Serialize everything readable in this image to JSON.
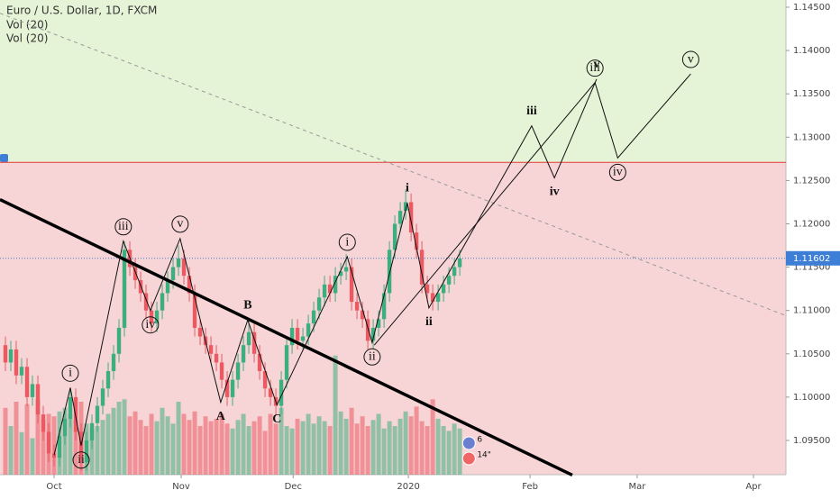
{
  "chart_data": {
    "type": "candlestick",
    "title": "Euro / U.S. Dollar, 1D, FXCM",
    "indicators": [
      "Vol (20)",
      "Vol (20)"
    ],
    "up_color": "#3fae7f",
    "down_color": "#ea5a62",
    "xlim": [
      -10,
      135.3
    ],
    "ylim": [
      1.09105,
      1.14583
    ],
    "vlim": [
      0,
      100
    ],
    "xticks": [
      {
        "value": 0,
        "label": "Oct"
      },
      {
        "value": 23.5,
        "label": "Nov"
      },
      {
        "value": 44.2,
        "label": "Dec"
      },
      {
        "value": 65.5,
        "label": "2020"
      },
      {
        "value": 88,
        "label": "Feb"
      },
      {
        "value": 107.8,
        "label": "Mar"
      },
      {
        "value": 129.3,
        "label": "Apr"
      }
    ],
    "yticks": [
      {
        "value": 1.145,
        "label": "1.14500"
      },
      {
        "value": 1.14,
        "label": "1.14000"
      },
      {
        "value": 1.135,
        "label": "1.13500"
      },
      {
        "value": 1.13,
        "label": "1.13000"
      },
      {
        "value": 1.125,
        "label": "1.12500"
      },
      {
        "value": 1.12,
        "label": "1.12000"
      },
      {
        "value": 1.115,
        "label": "1.11500"
      },
      {
        "value": 1.11,
        "label": "1.11000"
      },
      {
        "value": 1.105,
        "label": "1.10500"
      },
      {
        "value": 1.1,
        "label": "1.10000"
      },
      {
        "value": 1.095,
        "label": "1.09500"
      }
    ],
    "last_price": 1.11602,
    "zones": {
      "boundary": 1.1271,
      "above_color": "#e5f3d6",
      "below_color": "#f7d5d6"
    },
    "x": [
      -9,
      -8,
      -7,
      -6,
      -5,
      -4,
      -3,
      -2,
      -1,
      0,
      1,
      2,
      3,
      4,
      5,
      6,
      7,
      8,
      9,
      10,
      11,
      12,
      13,
      14,
      15,
      16,
      17,
      18,
      19,
      20,
      21,
      22,
      23,
      24,
      25,
      26,
      27,
      28,
      29,
      30,
      31,
      32,
      33,
      34,
      35,
      36,
      37,
      38,
      39,
      40,
      41,
      42,
      43,
      44,
      45,
      46,
      47,
      48,
      49,
      50,
      51,
      52,
      53,
      54,
      55,
      56,
      57,
      58,
      59,
      60,
      61,
      62,
      63,
      64,
      65,
      66,
      67,
      68,
      69,
      70,
      71,
      72,
      73,
      74,
      75
    ],
    "open": [
      1.106,
      1.104,
      1.1055,
      1.1025,
      1.1035,
      1.1,
      1.1015,
      1.098,
      1.096,
      1.0935,
      1.093,
      1.0955,
      1.0975,
      1.1,
      1.096,
      1.0925,
      1.095,
      1.097,
      1.099,
      1.101,
      1.103,
      1.105,
      1.108,
      1.117,
      1.115,
      1.1135,
      1.112,
      1.11,
      1.1085,
      1.11,
      1.112,
      1.1135,
      1.115,
      1.116,
      1.114,
      1.112,
      1.108,
      1.107,
      1.106,
      1.105,
      1.104,
      1.102,
      1.1,
      1.102,
      1.104,
      1.106,
      1.1075,
      1.105,
      1.103,
      1.101,
      1.1,
      1.099,
      1.102,
      1.106,
      1.108,
      1.1065,
      1.107,
      1.1085,
      1.11,
      1.1115,
      1.113,
      1.112,
      1.114,
      1.1145,
      1.115,
      1.111,
      1.11,
      1.109,
      1.1065,
      1.108,
      1.109,
      1.112,
      1.117,
      1.12,
      1.1215,
      1.1225,
      1.119,
      1.117,
      1.113,
      1.112,
      1.111,
      1.112,
      1.113,
      1.114,
      1.115
    ],
    "high": [
      1.107,
      1.1065,
      1.1065,
      1.1045,
      1.1045,
      1.1025,
      1.1025,
      1.099,
      1.097,
      1.0945,
      1.0965,
      1.0985,
      1.101,
      1.101,
      1.097,
      1.096,
      1.098,
      1.1,
      1.102,
      1.104,
      1.106,
      1.109,
      1.118,
      1.118,
      1.116,
      1.1145,
      1.113,
      1.111,
      1.111,
      1.113,
      1.1145,
      1.116,
      1.1175,
      1.117,
      1.115,
      1.113,
      1.109,
      1.108,
      1.107,
      1.106,
      1.105,
      1.103,
      1.103,
      1.105,
      1.107,
      1.109,
      1.1085,
      1.106,
      1.104,
      1.102,
      1.101,
      1.103,
      1.107,
      1.109,
      1.109,
      1.108,
      1.1095,
      1.111,
      1.1125,
      1.114,
      1.114,
      1.115,
      1.1155,
      1.1165,
      1.116,
      1.112,
      1.111,
      1.11,
      1.109,
      1.11,
      1.113,
      1.118,
      1.121,
      1.1225,
      1.124,
      1.1235,
      1.12,
      1.118,
      1.114,
      1.113,
      1.113,
      1.114,
      1.115,
      1.116,
      1.117
    ],
    "low": [
      1.103,
      1.103,
      1.1015,
      1.1015,
      1.099,
      1.099,
      1.097,
      1.095,
      1.0925,
      1.092,
      1.092,
      1.0945,
      1.0965,
      1.095,
      1.0915,
      1.0915,
      1.094,
      1.096,
      1.098,
      1.1,
      1.102,
      1.104,
      1.107,
      1.114,
      1.1125,
      1.111,
      1.109,
      1.1075,
      1.1075,
      1.109,
      1.111,
      1.1125,
      1.114,
      1.113,
      1.111,
      1.107,
      1.106,
      1.105,
      1.104,
      1.103,
      1.101,
      1.099,
      1.099,
      1.101,
      1.103,
      1.105,
      1.104,
      1.102,
      1.1,
      1.099,
      1.098,
      1.098,
      1.101,
      1.105,
      1.1055,
      1.1055,
      1.106,
      1.1075,
      1.109,
      1.1105,
      1.111,
      1.111,
      1.113,
      1.1135,
      1.11,
      1.109,
      1.108,
      1.1055,
      1.1055,
      1.107,
      1.108,
      1.111,
      1.116,
      1.119,
      1.1205,
      1.118,
      1.116,
      1.112,
      1.111,
      1.11,
      1.11,
      1.111,
      1.112,
      1.113,
      1.114
    ],
    "close": [
      1.104,
      1.1055,
      1.1025,
      1.1035,
      1.1,
      1.1015,
      1.098,
      1.096,
      1.0935,
      1.093,
      1.0955,
      1.0975,
      1.1,
      1.096,
      1.0925,
      1.095,
      1.097,
      1.099,
      1.101,
      1.103,
      1.105,
      1.108,
      1.117,
      1.115,
      1.1135,
      1.112,
      1.11,
      1.1085,
      1.11,
      1.112,
      1.1135,
      1.115,
      1.116,
      1.114,
      1.112,
      1.108,
      1.107,
      1.106,
      1.105,
      1.104,
      1.102,
      1.1,
      1.102,
      1.104,
      1.106,
      1.1075,
      1.105,
      1.103,
      1.101,
      1.1,
      1.099,
      1.102,
      1.106,
      1.108,
      1.1065,
      1.107,
      1.1085,
      1.11,
      1.1115,
      1.113,
      1.112,
      1.114,
      1.1145,
      1.115,
      1.111,
      1.11,
      1.109,
      1.1065,
      1.108,
      1.109,
      1.112,
      1.117,
      1.12,
      1.1215,
      1.1225,
      1.119,
      1.117,
      1.113,
      1.112,
      1.111,
      1.112,
      1.113,
      1.114,
      1.115,
      1.116
    ],
    "volume": [
      55,
      40,
      60,
      35,
      58,
      30,
      62,
      45,
      50,
      48,
      52,
      55,
      50,
      45,
      60,
      42,
      38,
      40,
      45,
      50,
      55,
      60,
      62,
      48,
      52,
      45,
      40,
      50,
      44,
      55,
      48,
      42,
      60,
      50,
      45,
      52,
      40,
      48,
      44,
      46,
      50,
      42,
      38,
      45,
      50,
      40,
      44,
      48,
      36,
      50,
      42,
      55,
      40,
      38,
      46,
      44,
      50,
      42,
      48,
      44,
      40,
      98,
      52,
      46,
      55,
      42,
      48,
      40,
      45,
      50,
      38,
      44,
      40,
      46,
      52,
      48,
      56,
      44,
      40,
      62,
      46,
      40,
      36,
      42,
      38
    ],
    "trend_line": {
      "x": [
        -10,
        95.8
      ],
      "y": [
        1.1228,
        1.091
      ]
    },
    "dashed_line": {
      "x": [
        -10,
        135.3
      ],
      "y": [
        1.1443,
        1.1094
      ]
    },
    "wave_lines": [
      [
        {
          "label": null,
          "x": 0,
          "y": 1.0933,
          "circled": false
        },
        {
          "label": "i",
          "x": 3,
          "y": 1.1011,
          "circled": true
        },
        {
          "label": "ii",
          "x": 5,
          "y": 1.0944,
          "circled": true
        },
        {
          "label": "iii",
          "x": 12.8,
          "y": 1.118,
          "circled": true
        },
        {
          "label": "iv",
          "x": 17.8,
          "y": 1.11,
          "circled": true
        },
        {
          "label": "v",
          "x": 23.3,
          "y": 1.1183,
          "circled": true
        },
        {
          "label": "A",
          "x": 30.8,
          "y": 1.0994,
          "circled": false
        },
        {
          "label": "B",
          "x": 35.8,
          "y": 1.1089,
          "circled": false
        },
        {
          "label": "C",
          "x": 41.2,
          "y": 1.0991,
          "circled": false
        },
        {
          "label": "i",
          "x": 54.2,
          "y": 1.1162,
          "circled": true
        },
        {
          "label": "ii",
          "x": 58.8,
          "y": 1.1063,
          "circled": true
        },
        {
          "label": "i",
          "x": 65.3,
          "y": 1.1224,
          "circled": false
        },
        {
          "label": "ii",
          "x": 69.3,
          "y": 1.1103,
          "circled": false
        },
        {
          "label": "iii",
          "x": 88.3,
          "y": 1.1313,
          "circled": false
        },
        {
          "label": "iv",
          "x": 92.5,
          "y": 1.1253,
          "circled": false
        },
        {
          "label": "v",
          "x": 100.3,
          "y": 1.1367,
          "circled": false
        }
      ],
      [
        {
          "label": null,
          "x": 59.2,
          "y": 1.106,
          "circled": false
        },
        {
          "label": "iii",
          "x": 100,
          "y": 1.1363,
          "circled": true
        },
        {
          "label": "iv",
          "x": 104.2,
          "y": 1.1276,
          "circled": true
        },
        {
          "label": "v",
          "x": 117.7,
          "y": 1.1373,
          "circled": true
        }
      ]
    ],
    "events": [
      {
        "x": 76.7,
        "label": "6"
      },
      {
        "x": 76.7,
        "label": "14\""
      }
    ]
  }
}
